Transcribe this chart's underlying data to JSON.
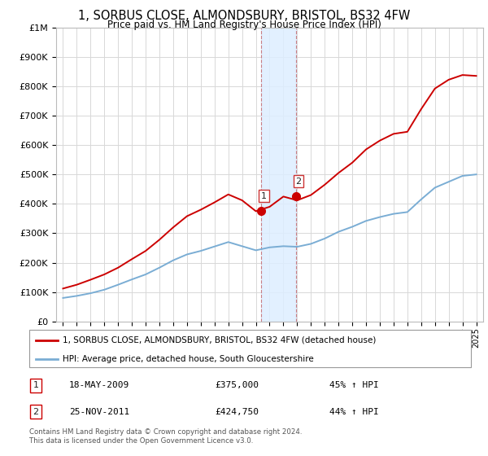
{
  "title": "1, SORBUS CLOSE, ALMONDSBURY, BRISTOL, BS32 4FW",
  "subtitle": "Price paid vs. HM Land Registry's House Price Index (HPI)",
  "red_label": "1, SORBUS CLOSE, ALMONDSBURY, BRISTOL, BS32 4FW (detached house)",
  "blue_label": "HPI: Average price, detached house, South Gloucestershire",
  "footer": "Contains HM Land Registry data © Crown copyright and database right 2024.\nThis data is licensed under the Open Government Licence v3.0.",
  "sale1_date": "18-MAY-2009",
  "sale1_price": 375000,
  "sale1_label": "45% ↑ HPI",
  "sale1_year": 2009.38,
  "sale2_date": "25-NOV-2011",
  "sale2_price": 424750,
  "sale2_label": "44% ↑ HPI",
  "sale2_year": 2011.9,
  "ylim": [
    0,
    1000000
  ],
  "xlim_start": 1994.5,
  "xlim_end": 2025.5,
  "background_color": "#ffffff",
  "plot_bg_color": "#ffffff",
  "grid_color": "#d8d8d8",
  "red_color": "#cc0000",
  "blue_color": "#7aadd4",
  "shade_color": "#ddeeff",
  "marker_size": 7,
  "years": [
    1995,
    1996,
    1997,
    1998,
    1999,
    2000,
    2001,
    2002,
    2003,
    2004,
    2005,
    2006,
    2007,
    2008,
    2009,
    2010,
    2011,
    2012,
    2013,
    2014,
    2015,
    2016,
    2017,
    2018,
    2019,
    2020,
    2021,
    2022,
    2023,
    2024,
    2025
  ],
  "hpi_values": [
    80000,
    87000,
    96000,
    108000,
    125000,
    143000,
    160000,
    183000,
    208000,
    228000,
    240000,
    255000,
    270000,
    256000,
    242000,
    252000,
    256000,
    254000,
    264000,
    282000,
    305000,
    322000,
    342000,
    355000,
    366000,
    372000,
    415000,
    455000,
    475000,
    495000,
    500000
  ],
  "red_values": [
    112000,
    125000,
    142000,
    160000,
    183000,
    212000,
    240000,
    278000,
    320000,
    358000,
    380000,
    405000,
    432000,
    412000,
    375000,
    390000,
    424750,
    412000,
    430000,
    465000,
    505000,
    540000,
    585000,
    615000,
    638000,
    645000,
    722000,
    792000,
    822000,
    838000,
    835000
  ]
}
